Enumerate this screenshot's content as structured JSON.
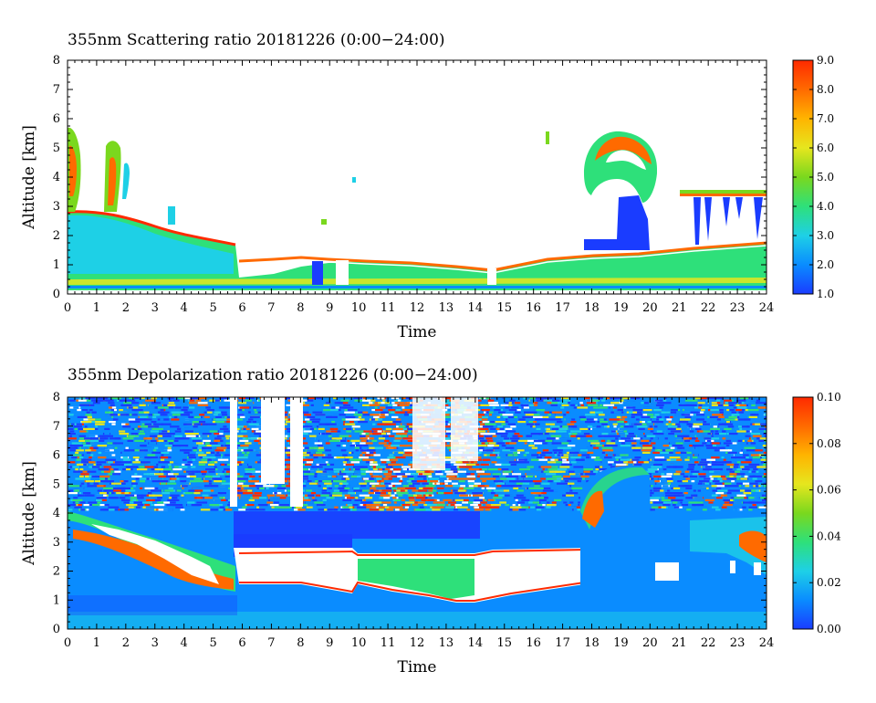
{
  "chart_data": [
    {
      "type": "heatmap",
      "title": "355nm Scattering ratio  20181226 (0:00−24:00)",
      "xlabel": "Time",
      "ylabel": "Altitude [km]",
      "xlim": [
        0,
        24
      ],
      "ylim": [
        0,
        8
      ],
      "x_ticks": [
        "0",
        "1",
        "2",
        "3",
        "4",
        "5",
        "6",
        "7",
        "8",
        "9",
        "10",
        "11",
        "12",
        "13",
        "14",
        "15",
        "16",
        "17",
        "18",
        "19",
        "20",
        "21",
        "22",
        "23",
        "24"
      ],
      "y_ticks": [
        "0",
        "1",
        "2",
        "3",
        "4",
        "5",
        "6",
        "7",
        "8"
      ],
      "colorbar": {
        "range": [
          1.0,
          9.0
        ],
        "ticks": [
          "1.0",
          "2.0",
          "3.0",
          "4.0",
          "5.0",
          "6.0",
          "7.0",
          "8.0",
          "9.0"
        ],
        "colors": [
          "#1a3cff",
          "#0a8cff",
          "#1ed0e6",
          "#2ee07a",
          "#7ad81e",
          "#e6e61e",
          "#ffb400",
          "#ff6a00",
          "#ff2a00"
        ]
      },
      "features": [
        {
          "x": [
            0,
            6
          ],
          "alt_top_km": [
            3.0,
            1.5
          ],
          "value": 3.0
        },
        {
          "x": [
            0,
            0.5
          ],
          "alt_km": [
            3.0,
            5.5
          ],
          "value": 6.0
        },
        {
          "x": [
            1.3,
            1.8
          ],
          "alt_km": [
            3.0,
            5.0
          ],
          "value": 6.0
        },
        {
          "x": [
            6,
            14.5
          ],
          "alt_top_km": [
            1.2,
            0.9
          ],
          "value": 4.0
        },
        {
          "x": [
            15,
            24
          ],
          "alt_top_km": [
            0.9,
            1.8
          ],
          "value": 4.5
        },
        {
          "x": [
            17.8,
            20.2
          ],
          "alt_km": [
            3.5,
            5.5
          ],
          "value": 6.0
        },
        {
          "x": [
            18,
            20
          ],
          "alt_km": [
            1.4,
            3.5
          ],
          "value": 1.5
        },
        {
          "x": [
            20.8,
            24
          ],
          "alt_km": [
            2.5,
            3.6
          ],
          "value": 1.5
        }
      ]
    },
    {
      "type": "heatmap",
      "title": "355nm Depolarization ratio  20181226 (0:00−24:00)",
      "xlabel": "Time",
      "ylabel": "Altitude [km]",
      "xlim": [
        0,
        24
      ],
      "ylim": [
        0,
        8
      ],
      "x_ticks": [
        "0",
        "1",
        "2",
        "3",
        "4",
        "5",
        "6",
        "7",
        "8",
        "9",
        "10",
        "11",
        "12",
        "13",
        "14",
        "15",
        "16",
        "17",
        "18",
        "19",
        "20",
        "21",
        "22",
        "23",
        "24"
      ],
      "y_ticks": [
        "0",
        "1",
        "2",
        "3",
        "4",
        "5",
        "6",
        "7",
        "8"
      ],
      "colorbar": {
        "range": [
          0.0,
          0.1
        ],
        "ticks": [
          "0.00",
          "0.02",
          "0.04",
          "0.06",
          "0.08",
          "0.10"
        ],
        "colors": [
          "#1a3cff",
          "#0a8cff",
          "#1ed0e6",
          "#2ee07a",
          "#7ad81e",
          "#e6e61e",
          "#ffb400",
          "#ff6a00",
          "#ff2a00"
        ]
      },
      "features": [
        {
          "x": [
            0,
            24
          ],
          "alt_km": [
            4.0,
            8.0
          ],
          "value": 0.015
        },
        {
          "x": [
            0,
            6
          ],
          "alt_km": [
            1.5,
            3.5
          ],
          "value": 0.05
        },
        {
          "x": [
            5.7,
            14.5
          ],
          "alt_km": [
            3.0,
            4.0
          ],
          "value": 0.008
        },
        {
          "x": [
            6,
            14.5
          ],
          "alt_km": [
            1.0,
            2.8
          ],
          "value": 0.1
        },
        {
          "x": [
            10,
            14
          ],
          "alt_km": [
            1.0,
            2.6
          ],
          "value": 0.04
        },
        {
          "x": [
            10,
            14.5
          ],
          "alt_km": [
            4.5,
            8.0
          ],
          "value": 0.08
        },
        {
          "x": [
            17.8,
            20
          ],
          "alt_km": [
            3.5,
            5.5
          ],
          "value": 0.05
        },
        {
          "x": [
            23,
            24
          ],
          "alt_km": [
            2.3,
            3.5
          ],
          "value": 0.07
        }
      ]
    }
  ]
}
